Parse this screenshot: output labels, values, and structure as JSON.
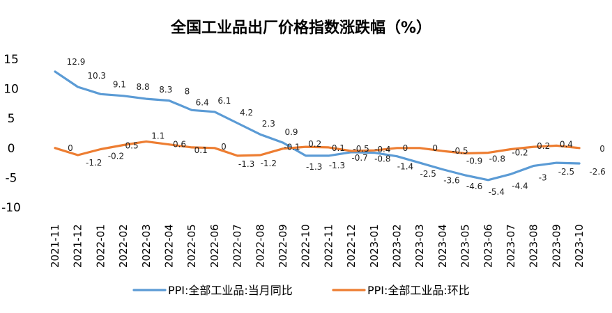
{
  "chart_data": {
    "type": "line",
    "title": "全国工业品出厂价格指数涨跌幅（%）",
    "categories": [
      "2021-11",
      "2021-12",
      "2022-01",
      "2022-02",
      "2022-03",
      "2022-04",
      "2022-05",
      "2022-06",
      "2022-07",
      "2022-08",
      "2022-09",
      "2022-10",
      "2022-11",
      "2022-12",
      "2023-01",
      "2023-02",
      "2023-03",
      "2023-04",
      "2023-05",
      "2023-06",
      "2023-07",
      "2023-08",
      "2023-09",
      "2023-10"
    ],
    "series": [
      {
        "name": "PPI:全部工业品:当月同比",
        "color": "#5B9BD5",
        "values": [
          12.9,
          10.3,
          9.1,
          8.8,
          8.3,
          8,
          6.4,
          6.1,
          4.2,
          2.3,
          0.9,
          -1.3,
          -1.3,
          -0.7,
          -0.8,
          -1.4,
          -2.5,
          -3.6,
          -4.6,
          -5.4,
          -4.4,
          -3,
          -2.5,
          -2.6
        ],
        "labels": [
          "12.9",
          "10.3",
          "9.1",
          "8.8",
          "8.3",
          "8",
          "6.4",
          "6.1",
          "4.2",
          "2.3",
          "0.9",
          "-1.3",
          "-1.3",
          "-0.7",
          "-0.8",
          "-1.4",
          "-2.5",
          "-3.6",
          "-4.6",
          "-5.4",
          "-4.4",
          "-3",
          "-2.5",
          "-2.6"
        ]
      },
      {
        "name": "PPI:全部工业品:环比",
        "color": "#ED7D31",
        "values": [
          0,
          -1.2,
          -0.2,
          0.5,
          1.1,
          0.6,
          0.1,
          0,
          -1.3,
          -1.2,
          -0.1,
          0.2,
          0.1,
          -0.5,
          -0.4,
          0,
          0,
          -0.5,
          -0.9,
          -0.8,
          -0.2,
          0.2,
          0.4,
          0
        ],
        "labels": [
          "0",
          "-1.2",
          "-0.2",
          "0.5",
          "1.1",
          "0.6",
          "0.1",
          "0",
          "-1.3",
          "-1.2",
          "-0.1",
          "0.2",
          "0.1",
          "-0.5",
          "-0.4",
          "0",
          "0",
          "-0.5",
          "-0.9",
          "-0.8",
          "-0.2",
          "0.2",
          "0.4",
          "0"
        ]
      }
    ],
    "yticks": [
      "15",
      "10",
      "5",
      "0",
      "-5",
      "-10"
    ],
    "ylim": [
      -10,
      15
    ],
    "grid": false,
    "legend_position": "bottom"
  }
}
